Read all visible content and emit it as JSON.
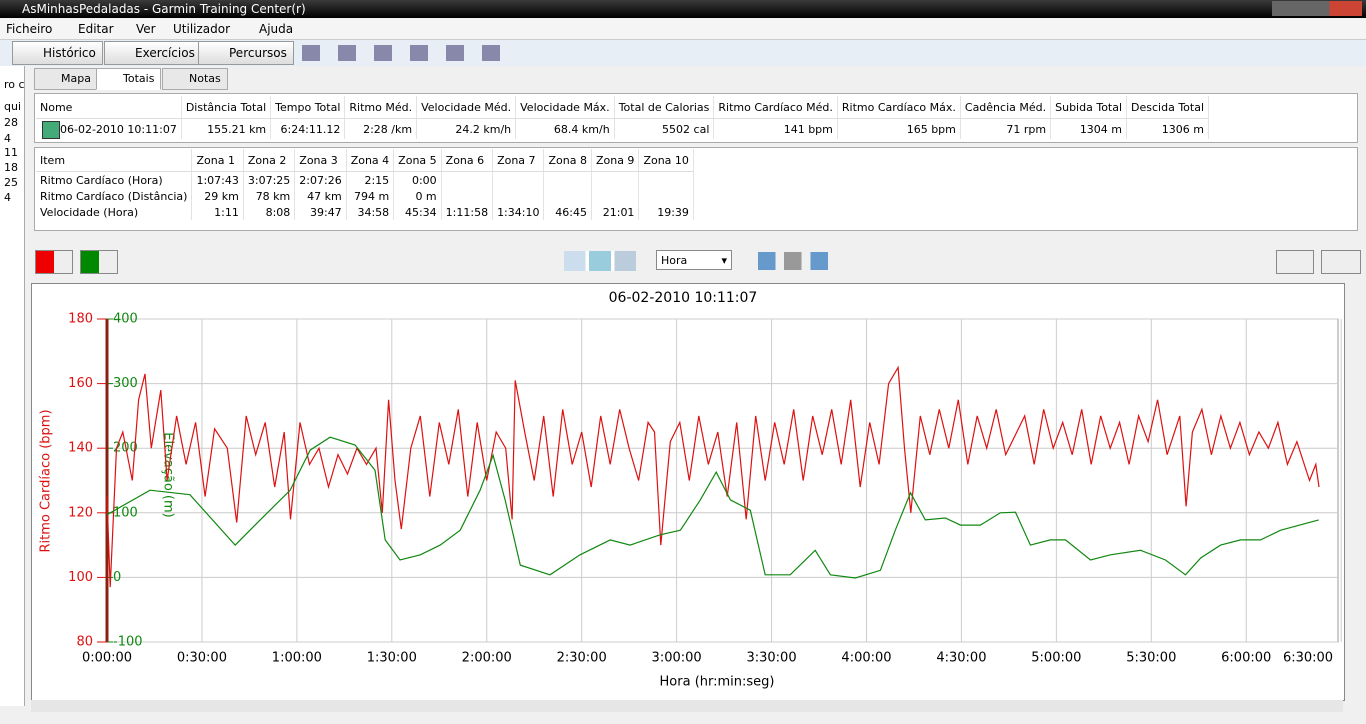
{
  "window": {
    "title": "AsMinhasPedaladas - Garmin Training Center(r)"
  },
  "menu": [
    "Ficheiro",
    "Editar",
    "Ver",
    "Utilizador",
    "Ajuda"
  ],
  "toolbar": [
    "Histórico",
    "Exercícios",
    "Percursos"
  ],
  "sidebar": [
    "ro c",
    "qui",
    "28",
    "4",
    "11",
    "18",
    "25",
    "4"
  ],
  "tabs": [
    "Mapa",
    "Totais",
    "Notas"
  ],
  "summary_table": {
    "headers": [
      "Nome",
      "Distância Total",
      "Tempo Total",
      "Ritmo Méd.",
      "Velocidade Méd.",
      "Velocidade Máx.",
      "Total de Calorias",
      "Ritmo Cardíaco Méd.",
      "Ritmo Cardíaco Máx.",
      "Cadência Méd.",
      "Subida Total",
      "Descida Total"
    ],
    "rows": [
      [
        "06-02-2010 10:11:07",
        "155.21 km",
        "6:24:11.12",
        "2:28 /km",
        "24.2 km/h",
        "68.4 km/h",
        "5502 cal",
        "141 bpm",
        "165 bpm",
        "71 rpm",
        "1304 m",
        "1306 m"
      ]
    ]
  },
  "zones_table": {
    "headers": [
      "Item",
      "Zona 1",
      "Zona 2",
      "Zona 3",
      "Zona 4",
      "Zona 5",
      "Zona 6",
      "Zona 7",
      "Zona 8",
      "Zona 9",
      "Zona 10"
    ],
    "rows": [
      [
        "Ritmo Cardíaco (Hora)",
        "1:07:43",
        "3:07:25",
        "2:07:26",
        "2:15",
        "0:00",
        null,
        null,
        null,
        null,
        null
      ],
      [
        "Ritmo Cardíaco (Distância)",
        "29 km",
        "78 km",
        "47 km",
        "794 m",
        "0 m",
        null,
        null,
        null,
        null,
        null
      ],
      [
        "Velocidade (Hora)",
        "1:11",
        "8:08",
        "39:47",
        "34:58",
        "45:34",
        "1:11:58",
        "1:34:10",
        "46:45",
        "21:01",
        "19:39"
      ]
    ]
  },
  "chart_controls": {
    "x_unit": "Hora"
  },
  "chart_data": {
    "type": "line",
    "title": "06-02-2010 10:11:07",
    "x_label": "Hora (hr:min:seg)",
    "y_label": "Ritmo Cardíaco (bpm)",
    "y2_label": "Elevação (m)",
    "xlim": [
      0,
      389
    ],
    "xticks": [
      {
        "value": 0,
        "label": "0:00:00"
      },
      {
        "value": 30,
        "label": "0:30:00"
      },
      {
        "value": 60,
        "label": "1:00:00"
      },
      {
        "value": 90,
        "label": "1:30:00"
      },
      {
        "value": 120,
        "label": "2:00:00"
      },
      {
        "value": 150,
        "label": "2:30:00"
      },
      {
        "value": 180,
        "label": "3:00:00"
      },
      {
        "value": 210,
        "label": "3:30:00"
      },
      {
        "value": 240,
        "label": "4:00:00"
      },
      {
        "value": 270,
        "label": "4:30:00"
      },
      {
        "value": 300,
        "label": "5:00:00"
      },
      {
        "value": 330,
        "label": "5:30:00"
      },
      {
        "value": 360,
        "label": "6:00:00"
      },
      {
        "value": 390,
        "label": "6:30:00"
      }
    ],
    "ylim": [
      80,
      180
    ],
    "yticks": [
      80,
      100,
      120,
      140,
      160,
      180
    ],
    "y_color": "#dd1111",
    "y2lim": [
      -100,
      400
    ],
    "y2ticks": [
      -100,
      0,
      100,
      200,
      300,
      400
    ],
    "y2_color": "#118811",
    "grid": true,
    "series": [
      {
        "color": "#dd1111",
        "axis": "y",
        "x": [
          0,
          1,
          3,
          5,
          8,
          10,
          12,
          14,
          17,
          19,
          22,
          25,
          28,
          31,
          34,
          38,
          41,
          44,
          47,
          50,
          53,
          56,
          58,
          61,
          64,
          67,
          70,
          73,
          76,
          79,
          82,
          85,
          87,
          89,
          91,
          93,
          96,
          99,
          102,
          105,
          108,
          111,
          114,
          117,
          120,
          123,
          126,
          128,
          129,
          132,
          135,
          138,
          141,
          144,
          147,
          150,
          153,
          156,
          159,
          162,
          165,
          168,
          171,
          173,
          175,
          178,
          181,
          184,
          187,
          190,
          193,
          196,
          199,
          202,
          205,
          208,
          211,
          214,
          217,
          220,
          223,
          226,
          229,
          232,
          235,
          238,
          241,
          244,
          247,
          250,
          252,
          254,
          257,
          260,
          263,
          266,
          269,
          272,
          275,
          278,
          281,
          284,
          290,
          293,
          296,
          299,
          302,
          305,
          308,
          311,
          314,
          317,
          320,
          323,
          326,
          329,
          332,
          335,
          339,
          341,
          343,
          346,
          349,
          352,
          355,
          358,
          361,
          364,
          367,
          370,
          373,
          376,
          380,
          382,
          383
        ],
        "values": [
          125,
          97,
          140,
          145,
          130,
          155,
          163,
          140,
          158,
          130,
          150,
          135,
          148,
          125,
          146,
          140,
          117,
          150,
          138,
          148,
          128,
          145,
          118,
          148,
          135,
          140,
          128,
          138,
          132,
          140,
          135,
          140,
          120,
          155,
          130,
          115,
          140,
          150,
          125,
          148,
          135,
          152,
          125,
          148,
          130,
          145,
          140,
          118,
          161,
          145,
          130,
          150,
          125,
          152,
          135,
          145,
          128,
          150,
          135,
          152,
          140,
          130,
          148,
          145,
          110,
          142,
          148,
          130,
          150,
          135,
          145,
          125,
          148,
          118,
          150,
          130,
          148,
          135,
          152,
          130,
          150,
          138,
          152,
          135,
          155,
          128,
          148,
          135,
          160,
          165,
          140,
          120,
          150,
          138,
          152,
          140,
          155,
          135,
          150,
          140,
          152,
          138,
          150,
          135,
          152,
          140,
          148,
          138,
          152,
          135,
          150,
          140,
          148,
          135,
          150,
          142,
          155,
          138,
          150,
          122,
          145,
          152,
          138,
          150,
          140,
          148,
          138,
          145,
          140,
          148,
          135,
          142,
          130,
          135,
          128
        ]
      },
      {
        "color": "#118811",
        "axis": "y2",
        "x": [
          0,
          13.6,
          26.2,
          40.5,
          48.4,
          57.9,
          64.2,
          70.5,
          78.4,
          84.7,
          87.9,
          92.6,
          99,
          105.3,
          111.6,
          117.9,
          122,
          125.8,
          130.6,
          140,
          149.5,
          159,
          165.3,
          174.8,
          181.2,
          187.5,
          192.5,
          197,
          203.3,
          208,
          215.9,
          223.8,
          228.6,
          236.5,
          244.4,
          249.1,
          253.9,
          258.6,
          264.9,
          269.7,
          276,
          282.3,
          287.1,
          291.8,
          298.1,
          302.9,
          310.8,
          317.1,
          326.6,
          334.5,
          340.8,
          345.6,
          351.9,
          358.2,
          364.5,
          370.9,
          382.9
        ],
        "values": [
          97,
          135,
          128,
          50,
          89,
          135,
          197,
          217,
          205,
          166,
          58,
          27,
          35,
          50,
          73,
          135,
          189,
          120,
          19,
          4,
          35,
          58,
          50,
          66,
          73,
          120,
          163,
          120,
          104,
          4,
          4,
          42,
          4,
          -1,
          11,
          73,
          131,
          89,
          92,
          81,
          81,
          100,
          101,
          50,
          58,
          58,
          27,
          35,
          42,
          27,
          4,
          30,
          50,
          58,
          58,
          73,
          89
        ]
      }
    ]
  }
}
